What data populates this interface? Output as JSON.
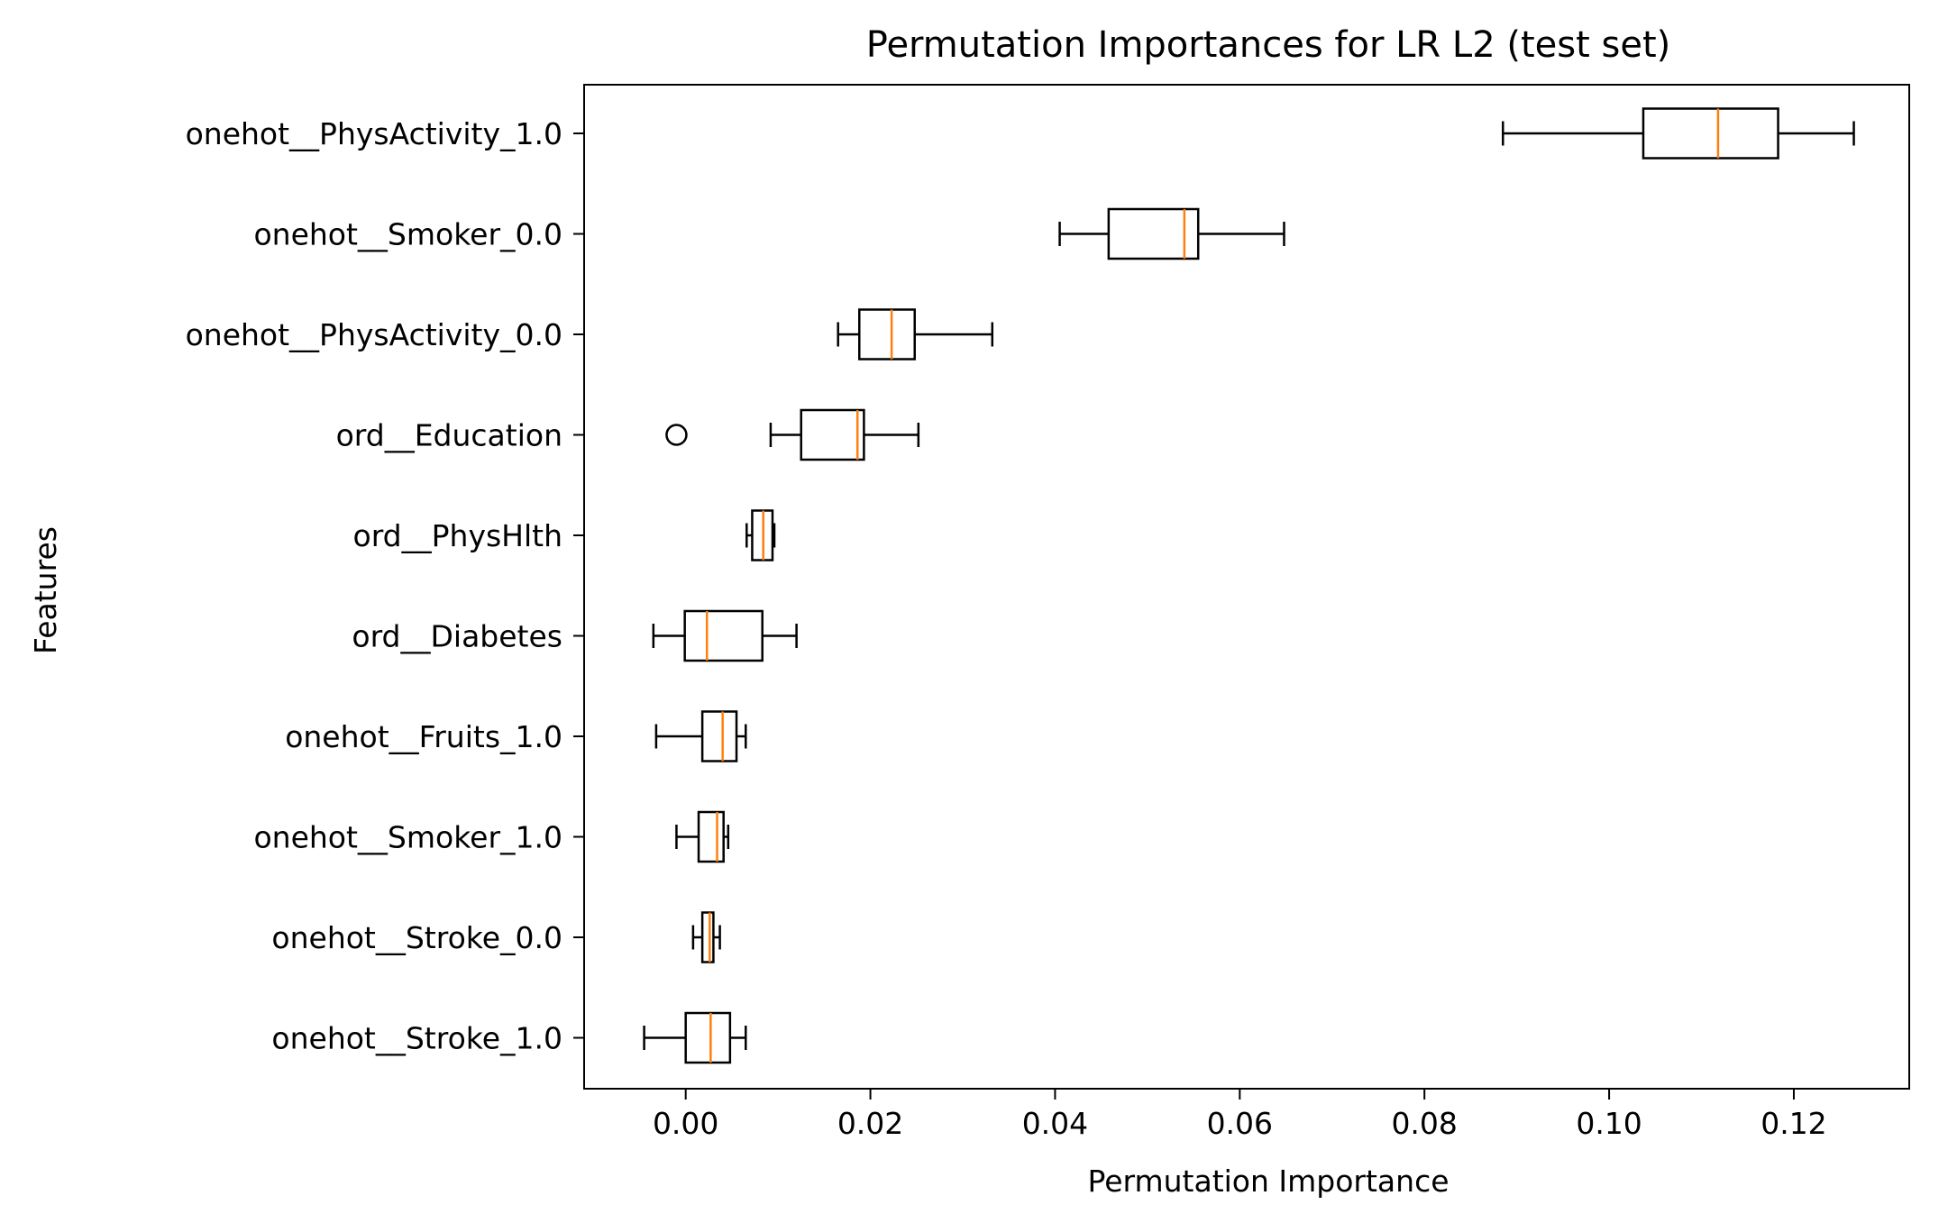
{
  "chart_data": {
    "type": "boxplot",
    "orientation": "horizontal",
    "title": "Permutation Importances for LR L2 (test set)",
    "xlabel": "Permutation Importance",
    "ylabel": "Features",
    "xlim": [
      -0.011,
      0.1325
    ],
    "xticks": [
      0.0,
      0.02,
      0.04,
      0.06,
      0.08,
      0.1,
      0.12
    ],
    "xtick_labels": [
      "0.00",
      "0.02",
      "0.04",
      "0.06",
      "0.08",
      "0.10",
      "0.12"
    ],
    "grid": false,
    "colors": {
      "box": "#000000",
      "median": "#ff7f0e"
    },
    "categories": [
      "onehot__PhysActivity_1.0",
      "onehot__Smoker_0.0",
      "onehot__PhysActivity_0.0",
      "ord__Education",
      "ord__PhysHlth",
      "ord__Diabetes",
      "onehot__Fruits_1.0",
      "onehot__Smoker_1.0",
      "onehot__Stroke_0.0",
      "onehot__Stroke_1.0"
    ],
    "boxes": [
      {
        "whisker_low": 0.0885,
        "q1": 0.1037,
        "median": 0.1118,
        "q3": 0.1183,
        "whisker_high": 0.1265,
        "outliers": []
      },
      {
        "whisker_low": 0.0405,
        "q1": 0.0458,
        "median": 0.054,
        "q3": 0.0555,
        "whisker_high": 0.0648,
        "outliers": []
      },
      {
        "whisker_low": 0.0165,
        "q1": 0.0188,
        "median": 0.0223,
        "q3": 0.0248,
        "whisker_high": 0.0332,
        "outliers": []
      },
      {
        "whisker_low": 0.0092,
        "q1": 0.0125,
        "median": 0.0186,
        "q3": 0.0193,
        "whisker_high": 0.0252,
        "outliers": [
          -0.001
        ]
      },
      {
        "whisker_low": 0.0066,
        "q1": 0.0072,
        "median": 0.0084,
        "q3": 0.0094,
        "whisker_high": 0.0096,
        "outliers": []
      },
      {
        "whisker_low": -0.0035,
        "q1": -0.0001,
        "median": 0.0023,
        "q3": 0.0083,
        "whisker_high": 0.012,
        "outliers": []
      },
      {
        "whisker_low": -0.0032,
        "q1": 0.0018,
        "median": 0.004,
        "q3": 0.0055,
        "whisker_high": 0.0065,
        "outliers": []
      },
      {
        "whisker_low": -0.001,
        "q1": 0.0014,
        "median": 0.0034,
        "q3": 0.0041,
        "whisker_high": 0.0046,
        "outliers": []
      },
      {
        "whisker_low": 0.0008,
        "q1": 0.0018,
        "median": 0.0026,
        "q3": 0.003,
        "whisker_high": 0.0037,
        "outliers": []
      },
      {
        "whisker_low": -0.0045,
        "q1": 0.0,
        "median": 0.0027,
        "q3": 0.0048,
        "whisker_high": 0.0065,
        "outliers": []
      }
    ]
  }
}
